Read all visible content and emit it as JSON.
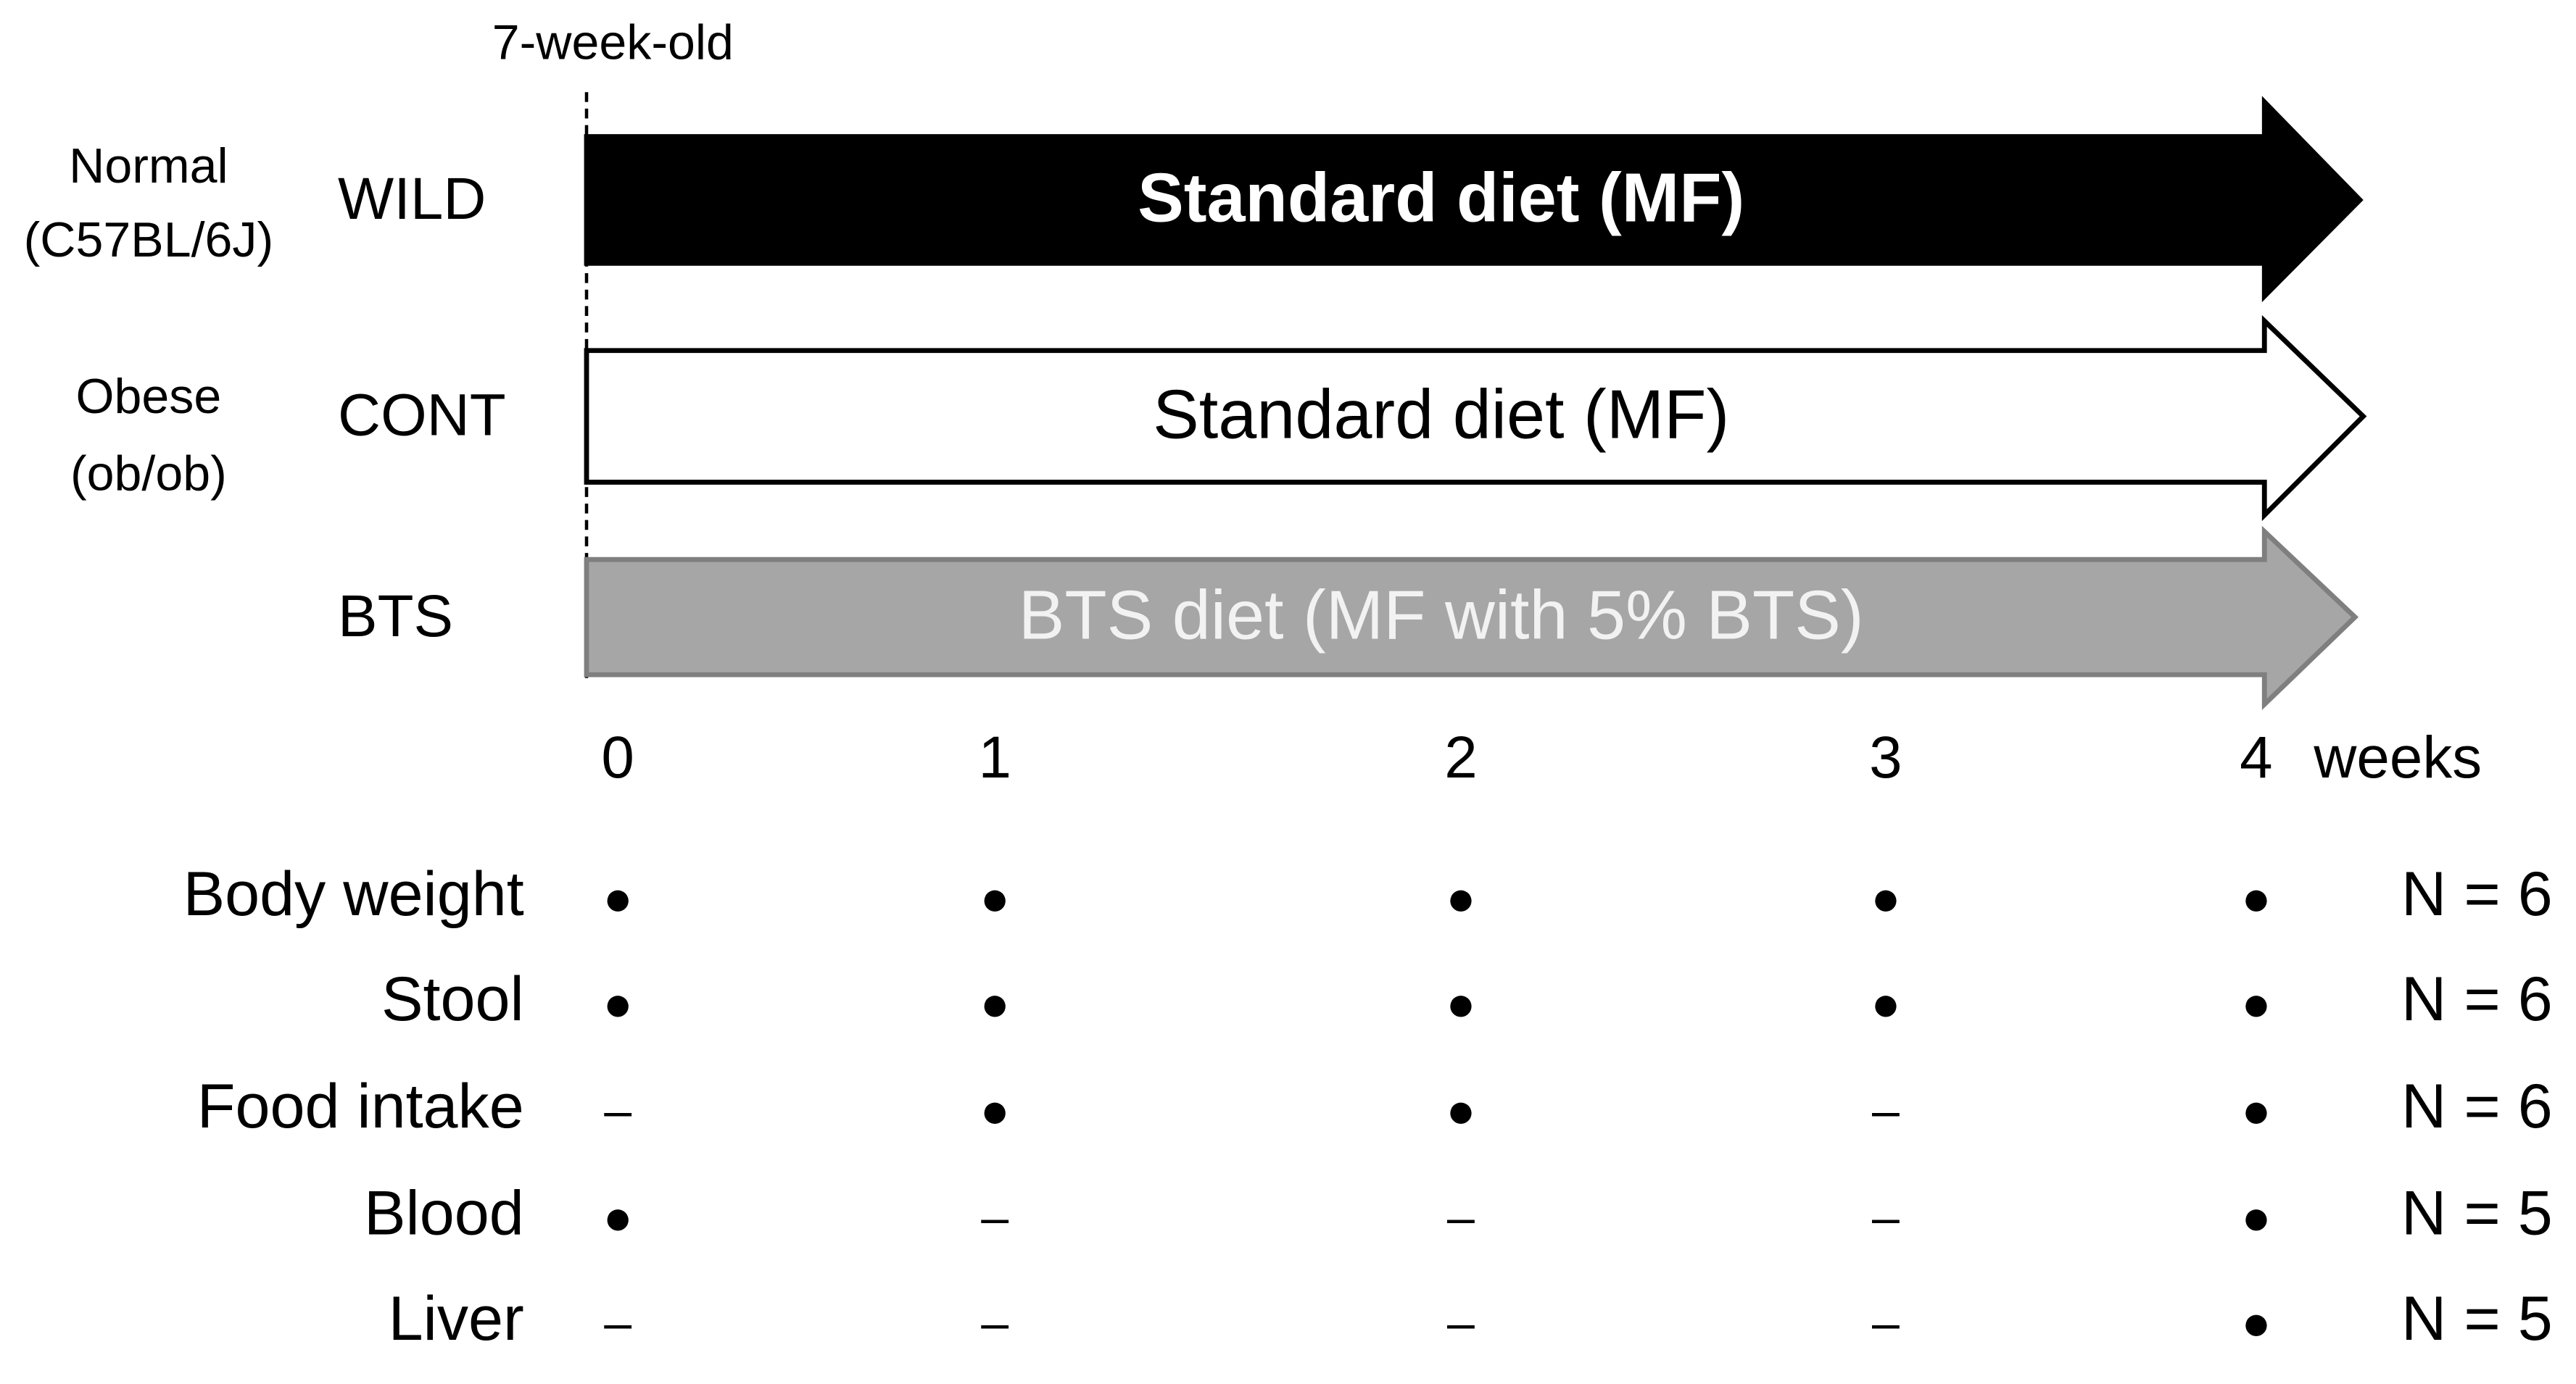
{
  "timeline": {
    "label": "7-week-old",
    "ticks": [
      "0",
      "1",
      "2",
      "3",
      "4"
    ],
    "unit": "weeks"
  },
  "groups": [
    {
      "strain": [
        "Normal",
        "(C57BL/6J)"
      ],
      "name": "WILD",
      "diet": "Standard diet (MF)"
    },
    {
      "strain": [
        "Obese",
        "(ob/ob)"
      ],
      "name": "CONT",
      "diet": "Standard diet (MF)"
    },
    {
      "name": "BTS",
      "diet": "BTS diet (MF with 5% BTS)"
    }
  ],
  "measurements": [
    {
      "label": "Body weight",
      "marks": [
        "●",
        "●",
        "●",
        "●",
        "●"
      ],
      "n": "N = 6"
    },
    {
      "label": "Stool",
      "marks": [
        "●",
        "●",
        "●",
        "●",
        "●"
      ],
      "n": "N = 6"
    },
    {
      "label": "Food intake",
      "marks": [
        "–",
        "●",
        "●",
        "–",
        "●"
      ],
      "n": "N = 6"
    },
    {
      "label": "Blood",
      "marks": [
        "●",
        "–",
        "–",
        "–",
        "●"
      ],
      "n": "N = 5"
    },
    {
      "label": "Liver",
      "marks": [
        "–",
        "–",
        "–",
        "–",
        "●"
      ],
      "n": "N = 5"
    }
  ]
}
